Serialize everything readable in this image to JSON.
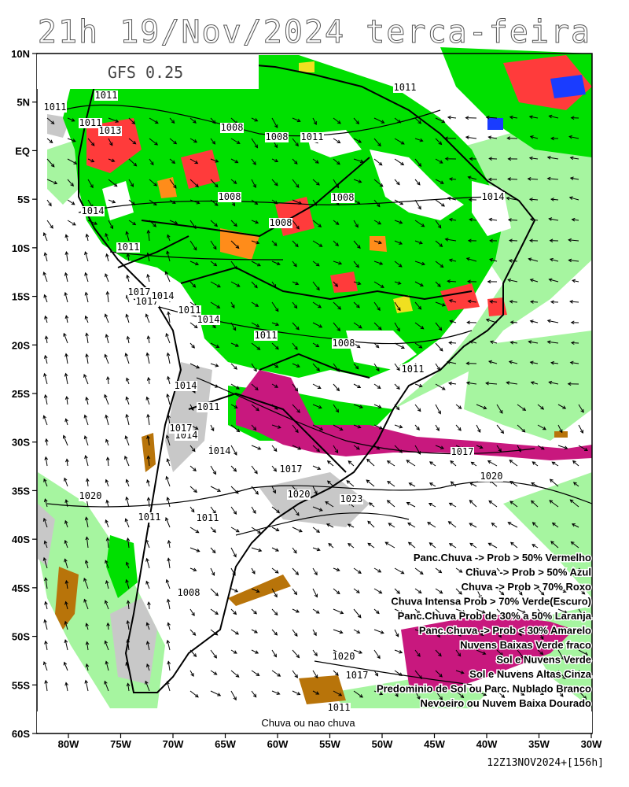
{
  "title": "21h 19/Nov/2024 terca-feira",
  "model": "GFS 0.25",
  "footer_label": "Chuva ou nao chuva",
  "run_stamp": "12Z13NOV2024+[156h]",
  "lat_ticks": [
    "10N",
    "5N",
    "EQ",
    "5S",
    "10S",
    "15S",
    "20S",
    "25S",
    "30S",
    "35S",
    "40S",
    "45S",
    "50S",
    "55S",
    "60S"
  ],
  "lon_ticks": [
    "80W",
    "75W",
    "70W",
    "65W",
    "60W",
    "55W",
    "50W",
    "45W",
    "40W",
    "35W",
    "30W"
  ],
  "isobar_labels": [
    "1011",
    "1011",
    "1013",
    "1011",
    "1014",
    "1008",
    "1008",
    "1011",
    "1008",
    "1008",
    "1008",
    "1011",
    "1014",
    "1011",
    "1017",
    "1017",
    "1014",
    "1011",
    "1014",
    "1011",
    "1008",
    "1011",
    "1014",
    "1011",
    "1014",
    "1017",
    "1014",
    "1017",
    "1020",
    "1020",
    "1017",
    "1020",
    "1023",
    "1011",
    "1011",
    "1020",
    "1008",
    "1020",
    "1017",
    "1011"
  ],
  "legend": [
    {
      "text": "Panc.Chuva -> Prob > 50% Vermelho",
      "color": "#ff3b3b"
    },
    {
      "text": "Chuva -> Prob > 50% Azul",
      "color": "#1a3cff"
    },
    {
      "text": "Chuva -> Prob > 70% Roxo",
      "color": "#c8187e"
    },
    {
      "text": "Chuva Intensa Prob > 70% Verde(Escuro)",
      "color": "#00a000"
    },
    {
      "text": "Panc.Chuva Prob de 30% a 50% Laranja",
      "color": "#ff8c1a"
    },
    {
      "text": "Panc.Chuva -> Prob < 30% Amarelo",
      "color": "#f0e020"
    },
    {
      "text": "Nuvens Baixas Verde fraco",
      "color": "#a6f5a0"
    },
    {
      "text": "Sol e Nuvens Verde",
      "color": "#00e000"
    },
    {
      "text": "Sol e Nuvens Altas Cinza",
      "color": "#c8c8c8"
    },
    {
      "text": "Predominio de Sol ou Parc. Nublado Branco",
      "color": "#ffffff"
    },
    {
      "text": "Nevoeiro ou Nuvem Baixa Dourado",
      "color": "#b8740a"
    }
  ],
  "colors": {
    "sun_clouds": "#00e000",
    "low_clouds": "#a6f5a0",
    "high_clouds": "#c8c8c8",
    "rain70": "#c8187e",
    "shower50": "#ff3b3b",
    "shower30_50": "#ff8c1a",
    "shower_lt30": "#f0e020",
    "rain50": "#1a3cff",
    "fog": "#b8740a"
  }
}
